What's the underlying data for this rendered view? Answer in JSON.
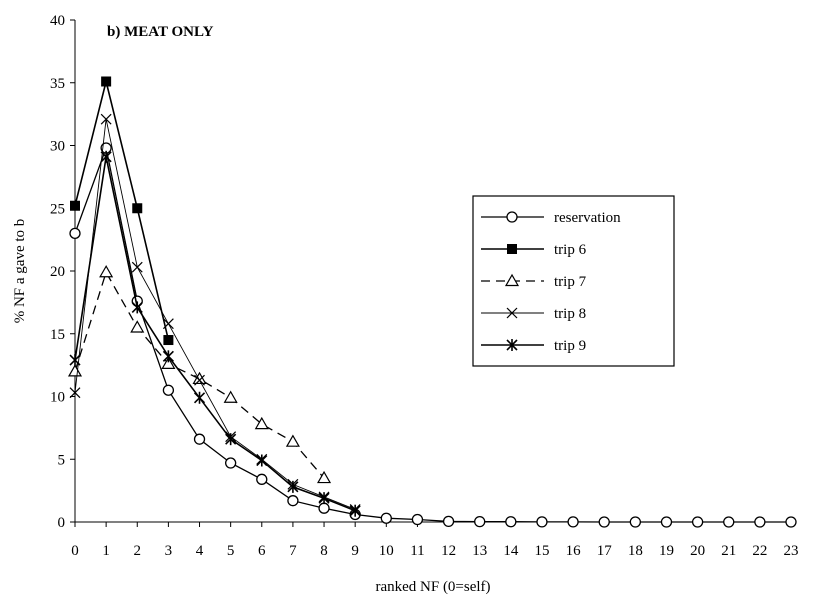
{
  "chart_data": {
    "type": "line",
    "title": "b) MEAT ONLY",
    "xlabel": "ranked NF (0=self)",
    "ylabel": "% NF a gave to b",
    "xlim": [
      0,
      23
    ],
    "ylim": [
      0,
      40
    ],
    "yticks": [
      0,
      5,
      10,
      15,
      20,
      25,
      30,
      35,
      40
    ],
    "xticks": [
      0,
      1,
      2,
      3,
      4,
      5,
      6,
      7,
      8,
      9,
      10,
      11,
      12,
      13,
      14,
      15,
      16,
      17,
      18,
      19,
      20,
      21,
      22,
      23
    ],
    "legend_position": "right",
    "grid": false,
    "series": [
      {
        "name": "reservation",
        "marker": "circle-open",
        "dash": "solid",
        "stroke_width": 1.3,
        "x": [
          0,
          1,
          2,
          3,
          4,
          5,
          6,
          7,
          8,
          9,
          10,
          11,
          12,
          13,
          14,
          15,
          16,
          17,
          18,
          19,
          20,
          21,
          22,
          23
        ],
        "y": [
          23.0,
          29.8,
          17.6,
          10.5,
          6.6,
          4.7,
          3.4,
          1.7,
          1.1,
          0.6,
          0.3,
          0.2,
          0.05,
          0.03,
          0.02,
          0.01,
          0.01,
          0,
          0,
          0,
          0,
          0,
          0,
          0
        ]
      },
      {
        "name": "trip 6",
        "marker": "square-filled",
        "dash": "solid",
        "stroke_width": 1.6,
        "x": [
          0,
          1,
          2,
          3
        ],
        "y": [
          25.2,
          35.1,
          25.0,
          14.5
        ]
      },
      {
        "name": "trip 7",
        "marker": "triangle-open",
        "dash": "dashed",
        "stroke_width": 1.3,
        "x": [
          0,
          1,
          2,
          3,
          4,
          5,
          6,
          7,
          8
        ],
        "y": [
          12.0,
          19.9,
          15.5,
          12.6,
          11.4,
          9.9,
          7.8,
          6.4,
          3.5
        ]
      },
      {
        "name": "trip 8",
        "marker": "x",
        "dash": "solid",
        "stroke_width": 0.9,
        "x": [
          0,
          1,
          2,
          3,
          4,
          5,
          6,
          7,
          8,
          9
        ],
        "y": [
          10.3,
          32.1,
          20.3,
          15.8,
          11.3,
          6.8,
          5.0,
          3.0,
          2.0,
          1.0
        ]
      },
      {
        "name": "trip 9",
        "marker": "asterisk",
        "dash": "solid",
        "stroke_width": 1.6,
        "x": [
          0,
          1,
          2,
          3,
          4,
          5,
          6,
          7,
          8,
          9
        ],
        "y": [
          12.9,
          29.1,
          17.1,
          13.2,
          9.9,
          6.6,
          4.9,
          2.8,
          1.9,
          0.9
        ]
      }
    ]
  }
}
